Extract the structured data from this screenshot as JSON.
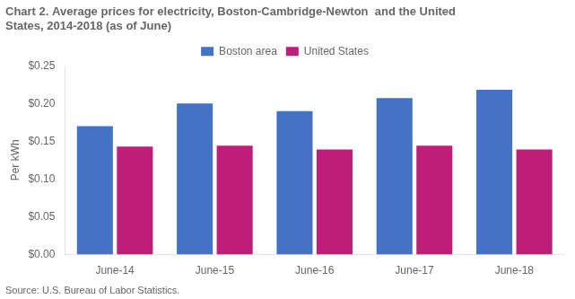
{
  "chart_data": {
    "type": "bar",
    "title": [
      "Chart 2. Average prices for electricity, Boston-Cambridge-Newton  and the United",
      "States, 2014-2018 (as of June)"
    ],
    "ylabel": "Per kWh",
    "source": "Source: U.S. Bureau of Labor Statistics.",
    "categories": [
      "June-14",
      "June-15",
      "June-16",
      "June-17",
      "June-18"
    ],
    "series": [
      {
        "name": "Boston area",
        "color": "#4472C4",
        "values": [
          0.17,
          0.2,
          0.19,
          0.207,
          0.218
        ]
      },
      {
        "name": "United States",
        "color": "#BE1E78",
        "values": [
          0.143,
          0.144,
          0.139,
          0.144,
          0.139
        ]
      }
    ],
    "ylim": [
      0.0,
      0.25
    ],
    "yticks": [
      {
        "value": 0.0,
        "label": "$0.00"
      },
      {
        "value": 0.05,
        "label": "$0.05"
      },
      {
        "value": 0.1,
        "label": "$0.10"
      },
      {
        "value": 0.15,
        "label": "$0.15"
      },
      {
        "value": 0.2,
        "label": "$0.20"
      },
      {
        "value": 0.25,
        "label": "$0.25"
      }
    ],
    "grid": false,
    "legend": "top"
  }
}
